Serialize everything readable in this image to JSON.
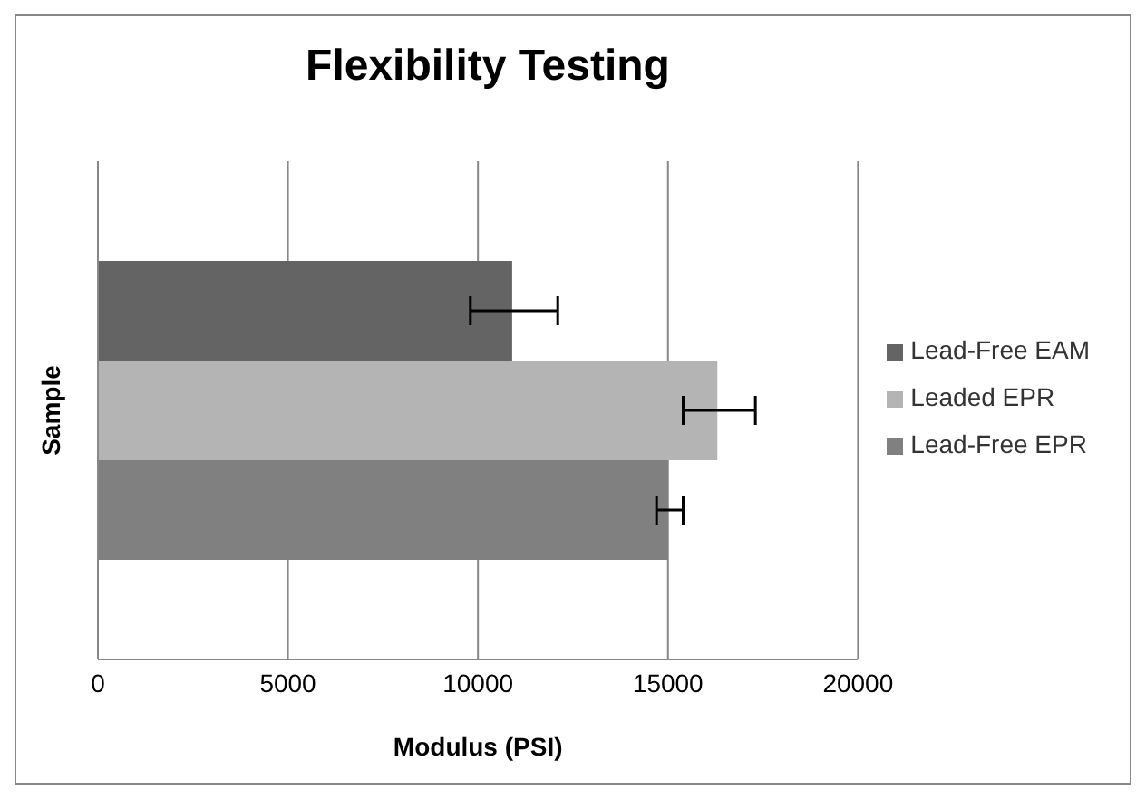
{
  "chart_data": {
    "type": "bar",
    "orientation": "horizontal",
    "title": "Flexibility Testing",
    "xlabel": "Modulus (PSI)",
    "ylabel": "Sample",
    "categories": [
      null
    ],
    "series": [
      {
        "name": "Lead-Free EAM",
        "color": "#646464",
        "values": [
          10900
        ],
        "errors": [
          [
            9800,
            12100
          ]
        ]
      },
      {
        "name": "Leaded EPR",
        "color": "#b4b4b4",
        "values": [
          16300
        ],
        "errors": [
          [
            15400,
            17300
          ]
        ]
      },
      {
        "name": "Lead-Free EPR",
        "color": "#808080",
        "values": [
          15000
        ],
        "errors": [
          [
            14700,
            15400
          ]
        ]
      }
    ],
    "xlim": [
      0,
      20000
    ],
    "xticks": [
      0,
      5000,
      10000,
      15000,
      20000
    ],
    "grid": "x",
    "legend": "right"
  }
}
